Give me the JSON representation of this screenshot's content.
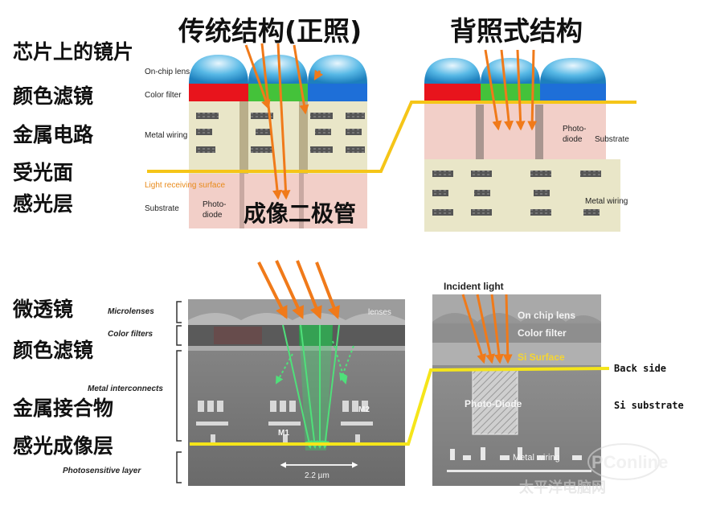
{
  "titles": {
    "frontside": "传统结构(正照)",
    "backside": "背照式结构"
  },
  "top_left_side_labels": [
    "芯片上的镜片",
    "颜色滤镜",
    "金属电路",
    "受光面",
    "感光层"
  ],
  "bottom_left_side_labels": [
    "微透镜",
    "颜色滤镜",
    "金属接合物",
    "感光成像层"
  ],
  "overlay_label": "成像二极管",
  "diagram_fsi": {
    "on_chip_lens": "On-chip lens",
    "color_filter": "Color filter",
    "metal_wiring": "Metal wiring",
    "light_receiving_surface": "Light receiving surface",
    "substrate": "Substrate",
    "photo_diode_1": "Photo-",
    "photo_diode_2": "diode"
  },
  "diagram_bsi": {
    "photo_diode_1": "Photo-",
    "photo_diode_2": "diode",
    "substrate": "Substrate",
    "metal_wiring": "Metal wiring"
  },
  "sem_left": {
    "microlenses": "Microlenses",
    "color_filters": "Color filters",
    "metal_interconnects": "Metal interconnects",
    "photosensitive_layer": "Photosensitive layer",
    "lenses": "lenses",
    "m1": "M1",
    "m2": "M2",
    "scale": "2.2 µm"
  },
  "sem_right": {
    "incident_light": "Incident light",
    "on_chip_lens": "On chip lens",
    "color_filter": "Color filter",
    "si_surface": "Si Surface",
    "back_side": "Back side",
    "si_substrate": "Si substrate",
    "photo_diode": "Photo-Diode",
    "metal_wiring": "Metal wiring"
  },
  "watermark": {
    "brand": "PConline",
    "chinese": "太平洋电脑网"
  },
  "colors": {
    "arrow_orange": "#f07a1a",
    "surface_line_yellow": "#f5c518",
    "red_filter": "#e8141c",
    "green_filter": "#44c23a",
    "blue_filter": "#1e6fd8",
    "lens_blue": "#4fb6e8",
    "wiring_bg": "#e9e6c8",
    "substrate_pink": "#f2cfc8",
    "sem_green": "#3cd66a"
  }
}
